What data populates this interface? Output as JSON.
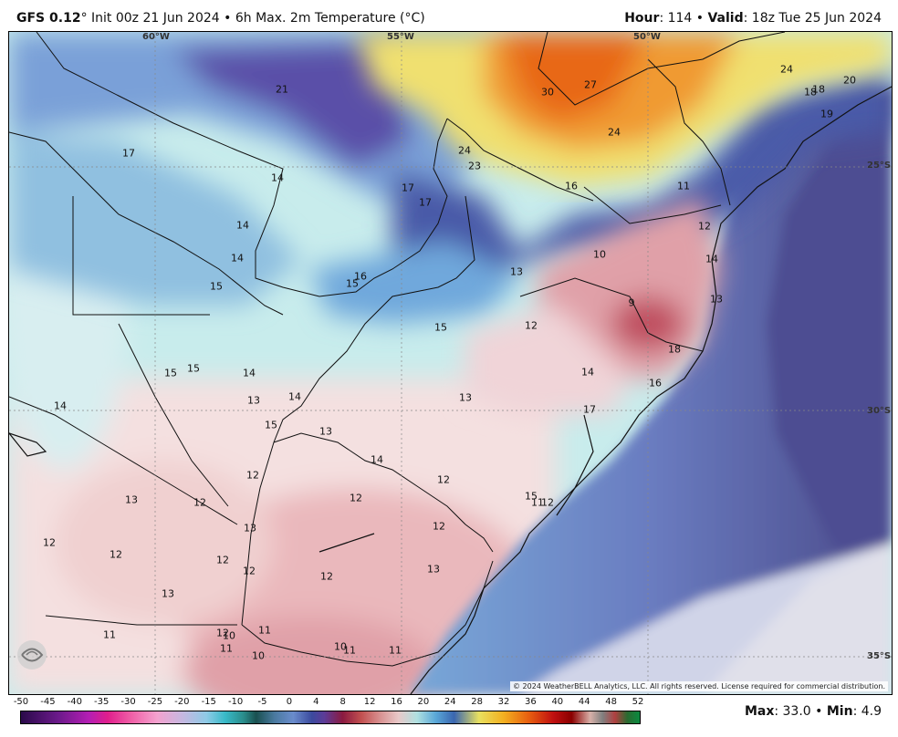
{
  "header": {
    "model": "GFS 0.12",
    "degree": "°",
    "init": " Init 00z 21 Jun 2024 • 6h Max. 2m Temperature (°C)",
    "hour_label": "Hour",
    "hour_value": ": 114 • ",
    "valid_label": "Valid",
    "valid_value": ": 18z Tue 25 Jun 2024"
  },
  "grid_labels": {
    "lon_60": "60°W",
    "lon_55": "55°W",
    "lon_50": "50°W",
    "lat_25": "25°S",
    "lat_30": "30°S",
    "lat_35": "35°S"
  },
  "values": [
    "21",
    "17",
    "14",
    "14",
    "14",
    "15",
    "16",
    "15",
    "17",
    "17",
    "24",
    "23",
    "30",
    "27",
    "24",
    "16",
    "24",
    "18",
    "18",
    "20",
    "19",
    "11",
    "12",
    "14",
    "13",
    "10",
    "13",
    "9",
    "12",
    "15",
    "18",
    "16",
    "14",
    "17",
    "15",
    "15",
    "14",
    "14",
    "13",
    "14",
    "15",
    "13",
    "13",
    "14",
    "12",
    "12",
    "13",
    "12",
    "12",
    "12",
    "13",
    "12",
    "12",
    "12",
    "12",
    "13",
    "13",
    "12",
    "11",
    "12",
    "11",
    "10",
    "11",
    "10",
    "10",
    "11",
    "11",
    "11",
    "12",
    "15"
  ],
  "copyright": "© 2024 WeatherBELL Analytics, LLC. All rights reserved. License required for commercial distribution.",
  "logo_text": "WEATHERBELL",
  "scale": {
    "ticks": [
      "-50",
      "-45",
      "-40",
      "-35",
      "-30",
      "-25",
      "-20",
      "-15",
      "-10",
      "-5",
      "0",
      "4",
      "8",
      "12",
      "16",
      "20",
      "24",
      "28",
      "32",
      "36",
      "40",
      "44",
      "48",
      "52"
    ]
  },
  "stats": {
    "max_label": "Max",
    "max_value": ": 33.0 • ",
    "min_label": "Min",
    "min_value": ": 4.9"
  },
  "colors": {
    "ocean_deep": "#4a4a8a",
    "ocean_mid": "#6a8cc8",
    "land_cool": "#b4e6e6",
    "land_blue": "#78a8d8",
    "land_pink": "#f0c8c8",
    "hot_orange": "#f08020",
    "hot_yellow": "#f0e060",
    "cold_purple": "#5a4aa0"
  }
}
